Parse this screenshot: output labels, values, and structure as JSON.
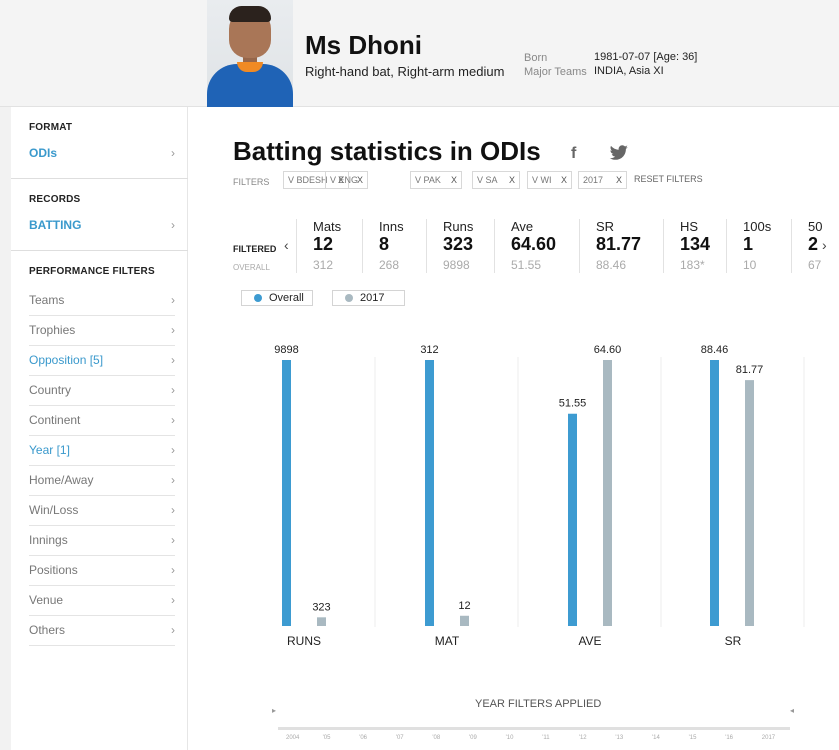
{
  "player": {
    "name": "Ms Dhoni",
    "role": "Right-hand bat, Right-arm medium",
    "born_label": "Born",
    "born_value": "1981-07-07 [Age: 36]",
    "teams_label": "Major Teams",
    "teams_value": "INDIA, Asia XI",
    "photo_icon": "player-photo"
  },
  "sidebar": {
    "format_heading": "FORMAT",
    "format_value": "ODIs",
    "records_heading": "RECORDS",
    "records_value": "BATTING",
    "performance_heading": "PERFORMANCE FILTERS",
    "chevron": "›",
    "filters": [
      {
        "label": "Teams",
        "active": false
      },
      {
        "label": "Trophies",
        "active": false
      },
      {
        "label": "Opposition [5]",
        "active": true
      },
      {
        "label": "Country",
        "active": false
      },
      {
        "label": "Continent",
        "active": false
      },
      {
        "label": "Year [1]",
        "active": true
      },
      {
        "label": "Home/Away",
        "active": false
      },
      {
        "label": "Win/Loss",
        "active": false
      },
      {
        "label": "Innings",
        "active": false
      },
      {
        "label": "Positions",
        "active": false
      },
      {
        "label": "Venue",
        "active": false
      },
      {
        "label": "Others",
        "active": false
      }
    ]
  },
  "main": {
    "title": "Batting statistics in ODIs",
    "facebook_icon": "f",
    "filters_label": "FILTERS",
    "chips": [
      "V BDESH",
      "V ENG",
      "V PAK",
      "V SA",
      "V WI",
      "2017"
    ],
    "chip_close": "X",
    "reset_label": "RESET FILTERS",
    "filtered_label": "FILTERED",
    "overall_label": "OVERALL",
    "prev_arrow": "‹",
    "next_arrow": "›",
    "stats": [
      {
        "label": "Mats",
        "filtered": "12",
        "overall": "312"
      },
      {
        "label": "Inns",
        "filtered": "8",
        "overall": "268"
      },
      {
        "label": "Runs",
        "filtered": "323",
        "overall": "9898"
      },
      {
        "label": "Ave",
        "filtered": "64.60",
        "overall": "51.55"
      },
      {
        "label": "SR",
        "filtered": "81.77",
        "overall": "88.46"
      },
      {
        "label": "HS",
        "filtered": "134",
        "overall": "183*"
      },
      {
        "label": "100s",
        "filtered": "1",
        "overall": "10"
      },
      {
        "label": "50",
        "filtered": "2",
        "overall": "67"
      }
    ],
    "legend": [
      {
        "label": "Overall",
        "color": "#3d9bd1"
      },
      {
        "label": "2017",
        "color": "#a9b9c1"
      }
    ],
    "timeline": {
      "title": "YEAR FILTERS APPLIED",
      "left_arrow": "▸",
      "right_arrow": "◂",
      "years": [
        "2004",
        "'05",
        "'06",
        "'07",
        "'08",
        "'09",
        "'10",
        "'11",
        "'12",
        "'13",
        "'14",
        "'15",
        "'16",
        "2017"
      ]
    }
  },
  "chart_data": {
    "type": "bar",
    "categories": [
      "RUNS",
      "MAT",
      "AVE",
      "SR"
    ],
    "series": [
      {
        "name": "Overall",
        "values": [
          9898,
          312,
          51.55,
          88.46
        ],
        "labels": [
          "9898",
          "312",
          "51.55",
          "88.46"
        ],
        "color": "#3d9bd1"
      },
      {
        "name": "2017",
        "values": [
          323,
          12,
          64.6,
          81.77
        ],
        "labels": [
          "323",
          "12",
          "64.60",
          "81.77"
        ],
        "color": "#a9b9c1"
      }
    ],
    "normalization": "each category scaled independently to its own maximum",
    "grid": "vertical separators between categories",
    "xlabel": "",
    "ylabel": ""
  }
}
